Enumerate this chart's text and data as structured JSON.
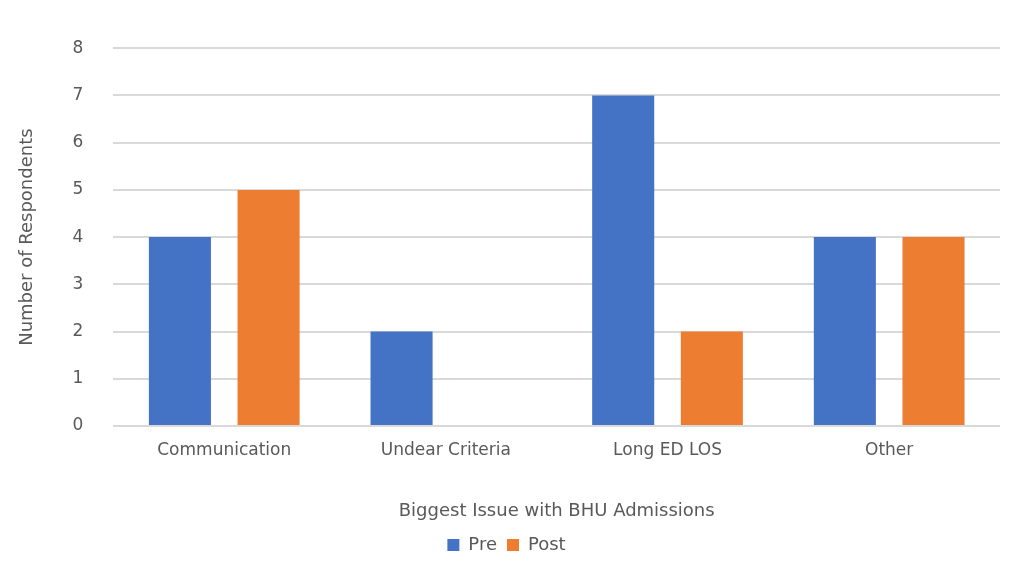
{
  "chart_data": {
    "type": "bar",
    "xlabel": "Biggest Issue with BHU Admissions",
    "ylabel": "Number of Respondents",
    "categories": [
      "Communication",
      "Undear Criteria",
      "Long ED LOS",
      "Other"
    ],
    "series": [
      {
        "name": "Pre",
        "color": "#4472c4",
        "values": [
          4,
          2,
          7,
          4
        ]
      },
      {
        "name": "Post",
        "color": "#ed7d31",
        "values": [
          5,
          0,
          2,
          4
        ]
      }
    ],
    "ylim": [
      0,
      8
    ],
    "yticks": [
      0,
      1,
      2,
      3,
      4,
      5,
      6,
      7,
      8
    ],
    "grid": "y",
    "legend": "bottom"
  }
}
